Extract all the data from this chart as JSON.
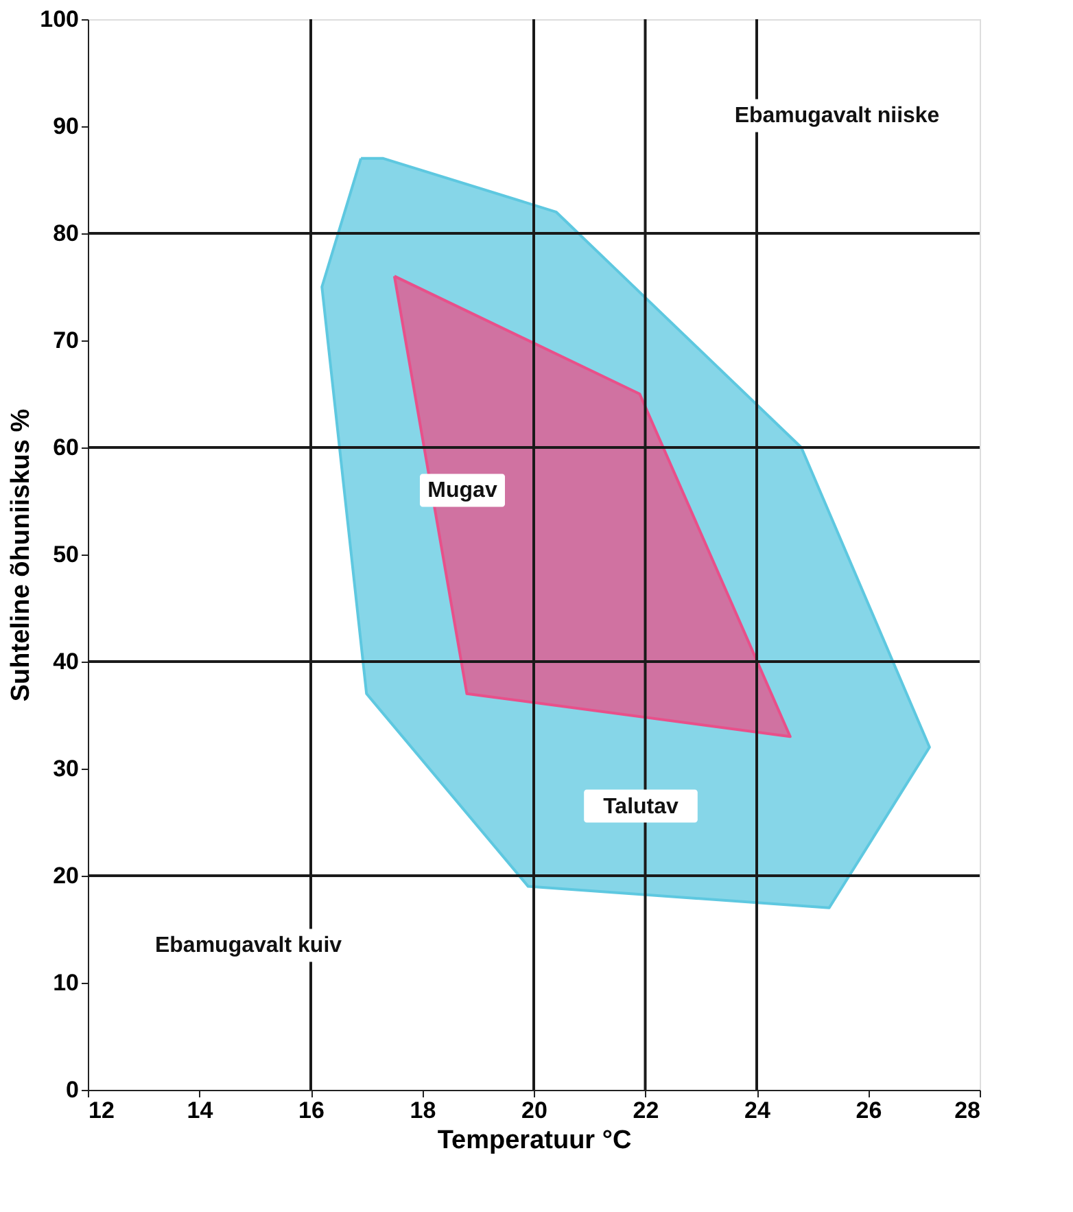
{
  "chart_data": {
    "type": "area",
    "xlabel": "Temperatuur °C",
    "ylabel": "Suhteline õhuniiskus %",
    "xlim": [
      12,
      28
    ],
    "xticks": [
      12,
      14,
      16,
      18,
      20,
      22,
      24,
      26,
      28
    ],
    "ylim": [
      0,
      100
    ],
    "yticks": [
      0,
      10,
      20,
      30,
      40,
      50,
      60,
      70,
      80,
      90,
      100
    ],
    "grid": false,
    "marker": "none",
    "series": [
      {
        "color": "#5ec8e0",
        "x": [
          16.9,
          17.3,
          20.4,
          21.6,
          24.8,
          27.1,
          25.3,
          19.9,
          17.0,
          16.2
        ],
        "values": [
          87,
          87,
          82,
          76,
          60,
          32,
          17,
          19,
          37,
          75
        ]
      },
      {
        "color": "#e8508a",
        "x": [
          17.5,
          21.9,
          24.6,
          18.8
        ],
        "values": [
          76,
          65,
          33,
          37
        ]
      }
    ],
    "ref_lines": [
      {
        "axis": "x",
        "value": 16,
        "color": "#1a1a1a"
      },
      {
        "axis": "x",
        "value": 20,
        "color": "#1a1a1a"
      },
      {
        "axis": "x",
        "value": 22,
        "color": "#1a1a1a"
      },
      {
        "axis": "x",
        "value": 24,
        "color": "#1a1a1a"
      },
      {
        "axis": "y",
        "value": 20,
        "color": "#1a1a1a"
      },
      {
        "axis": "y",
        "value": 40,
        "color": "#1a1a1a"
      },
      {
        "axis": "y",
        "value": 60,
        "color": "#1a1a1a"
      },
      {
        "axis": "y",
        "value": 80,
        "color": "#1a1a1a"
      }
    ],
    "annotations": [
      "Ebamugavalt niiske",
      "Mugav",
      "Talutav",
      "Ebamugavalt kuiv"
    ]
  }
}
